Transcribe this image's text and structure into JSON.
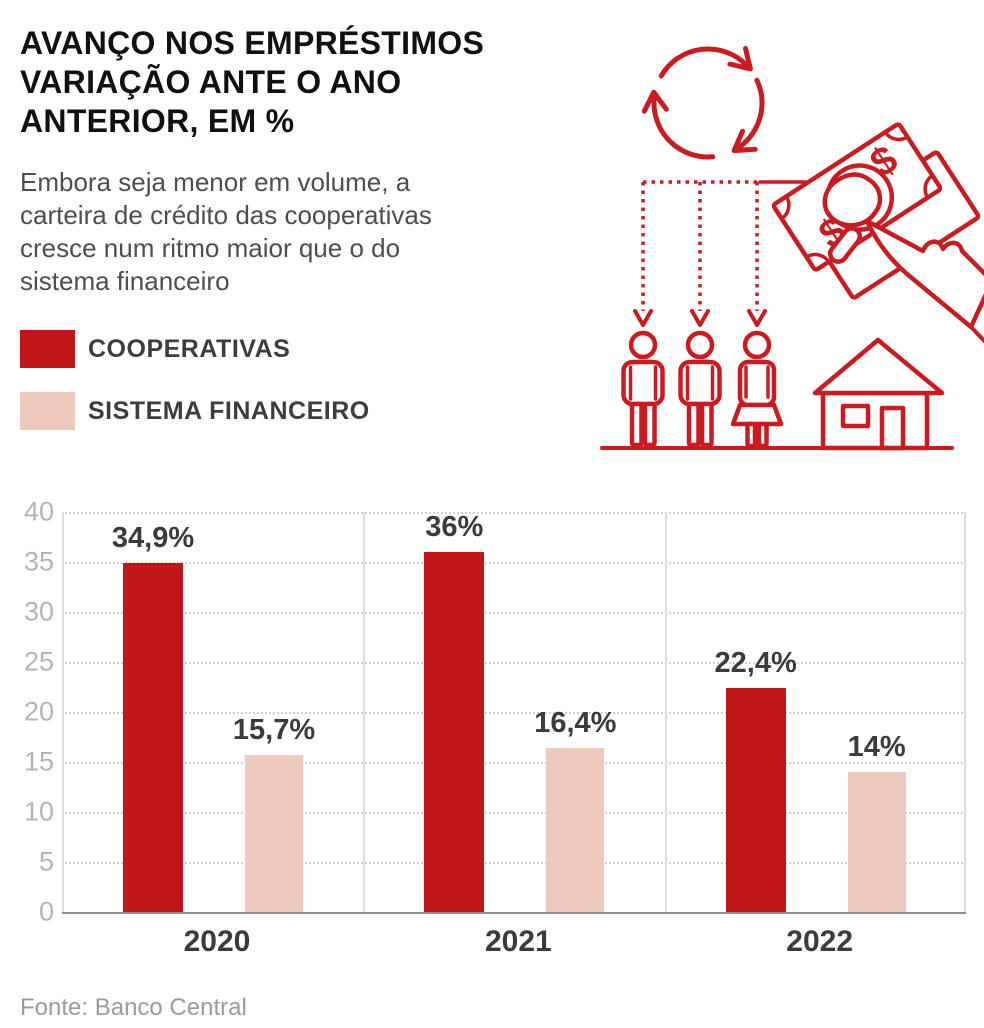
{
  "header": {
    "title_lines": [
      "AVANÇO NOS EMPRÉSTIMOS",
      "VARIAÇÃO ANTE O ANO",
      "ANTERIOR, EM %"
    ],
    "subtitle_lines": [
      "Embora seja menor em volume, a",
      "carteira de crédito das cooperativas",
      "cresce num ritmo maior que o do",
      "sistema financeiro"
    ]
  },
  "legend": {
    "items": [
      {
        "label": "COOPERATIVAS",
        "color": "#c31618"
      },
      {
        "label": "SISTEMA FINANCEIRO",
        "color": "#eecabd"
      }
    ]
  },
  "illustration": {
    "color": "#cb1b20",
    "dollar_sign": "$",
    "icons": [
      "cycle-arrows-icon",
      "money-hand-icon",
      "distribution-arrows-icon",
      "people-icon",
      "house-icon"
    ]
  },
  "chart_data": {
    "type": "bar",
    "title": "AVANÇO NOS EMPRÉSTIMOS — VARIAÇÃO ANTE O ANO ANTERIOR, EM %",
    "categories": [
      "2020",
      "2021",
      "2022"
    ],
    "series": [
      {
        "name": "COOPERATIVAS",
        "color": "#c31618",
        "values": [
          34.9,
          36,
          22.4
        ],
        "labels": [
          "34,9%",
          "36%",
          "22,4%"
        ]
      },
      {
        "name": "SISTEMA FINANCEIRO",
        "color": "#eecabd",
        "values": [
          15.7,
          16.4,
          14
        ],
        "labels": [
          "15,7%",
          "16,4%",
          "14%"
        ]
      }
    ],
    "y_axis": {
      "min": 0,
      "max": 40,
      "step": 5,
      "ticks": [
        0,
        5,
        10,
        15,
        20,
        25,
        30,
        35,
        40
      ]
    },
    "grid": "dotted-horizontal",
    "legend_position": "top-left"
  },
  "footer": {
    "source": "Fonte: Banco Central"
  }
}
